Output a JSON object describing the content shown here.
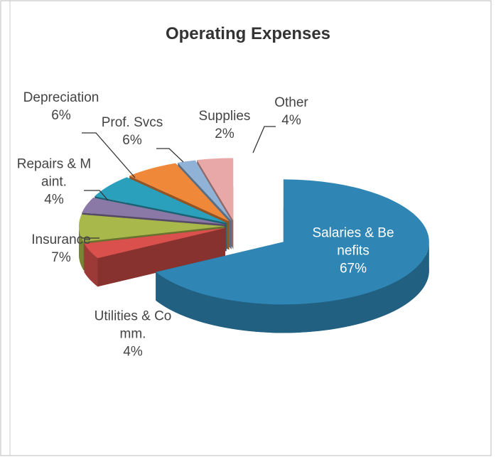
{
  "chart_data": {
    "type": "pie3d",
    "title": "Operating Expenses",
    "categories": [
      "Salaries & Benefits",
      "Utilities & Comm.",
      "Insurance",
      "Repairs & Maint.",
      "Depreciation",
      "Prof. Svcs",
      "Supplies",
      "Other"
    ],
    "values": [
      67,
      4,
      7,
      4,
      6,
      6,
      2,
      4
    ],
    "value_labels": [
      "67%",
      "4%",
      "7%",
      "4%",
      "6%",
      "6%",
      "2%",
      "4%"
    ],
    "colors": [
      "#2f86b5",
      "#d9504c",
      "#a9b84a",
      "#8a78a6",
      "#2aa0bd",
      "#f08839",
      "#8fb2d6",
      "#e8a8a8"
    ]
  }
}
